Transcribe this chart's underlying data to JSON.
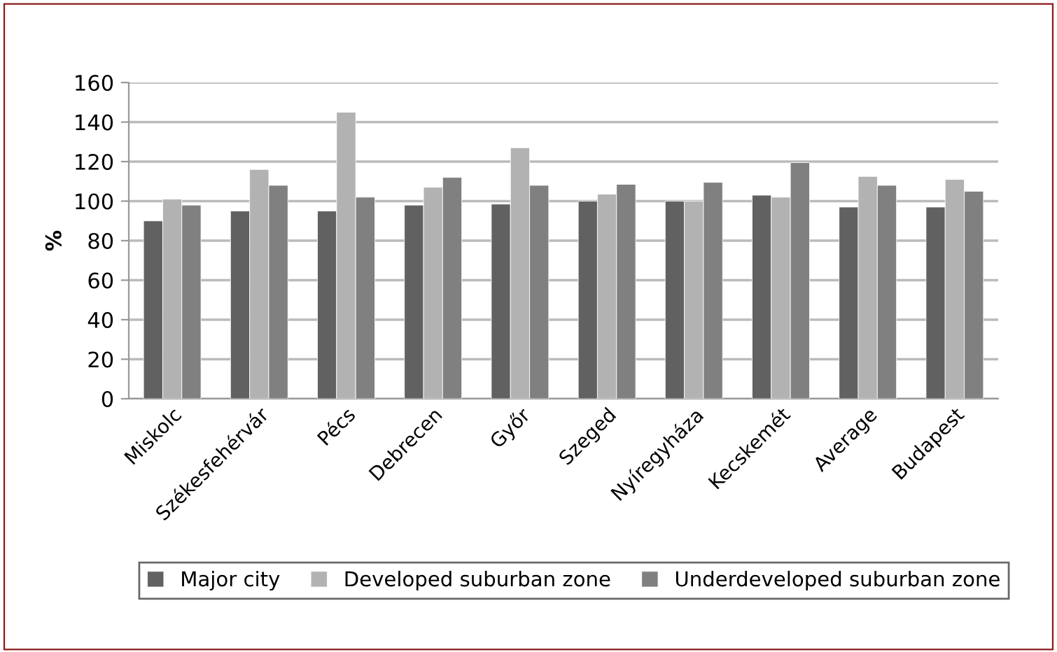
{
  "chart_data": {
    "type": "bar",
    "ylabel": "%",
    "categories": [
      "Miskolc",
      "Székesfehérvár",
      "Pécs",
      "Debrecen",
      "Győr",
      "Szeged",
      "Nyíregyháza",
      "Kecskemét",
      "Average",
      "Budapest"
    ],
    "series": [
      {
        "name": "Major city",
        "color": "#616161",
        "values": [
          90,
          95,
          95,
          98,
          98.5,
          100,
          100,
          103,
          97,
          97
        ]
      },
      {
        "name": "Developed suburban zone",
        "color": "#b2b2b2",
        "values": [
          101,
          116,
          145,
          107,
          127,
          103.5,
          100,
          102,
          112.5,
          111
        ]
      },
      {
        "name": "Underdeveloped suburban zone",
        "color": "#808080",
        "values": [
          98,
          108,
          102,
          112,
          108,
          108.5,
          109.5,
          119.5,
          108,
          105
        ]
      }
    ],
    "ylim": [
      0,
      160
    ],
    "yticks": [
      0,
      20,
      40,
      60,
      80,
      100,
      120,
      140,
      160
    ],
    "grid": "y",
    "legend": "bottom"
  }
}
